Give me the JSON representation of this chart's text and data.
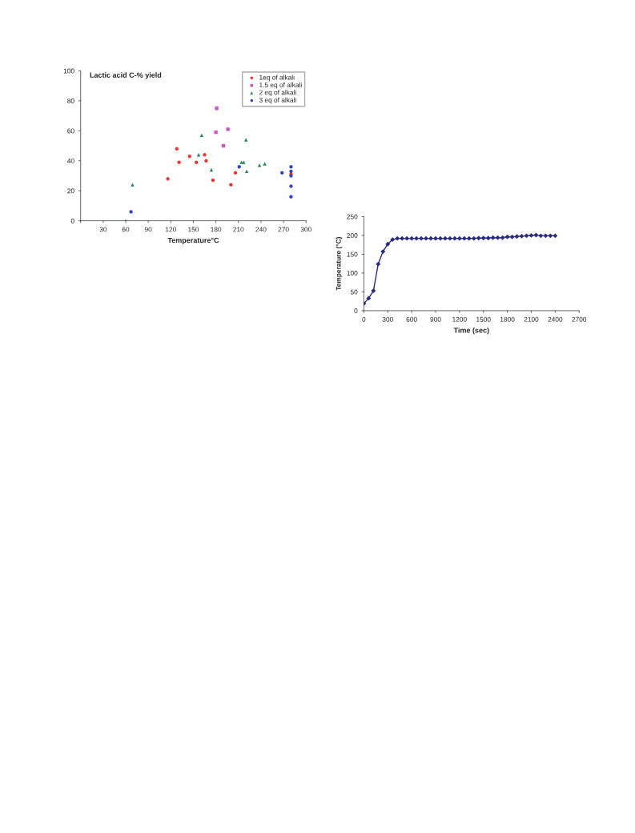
{
  "chart_data": [
    {
      "type": "scatter",
      "title": "Lactic acid C-% yield",
      "xlabel": "Temperature°C",
      "xlim": [
        0,
        300
      ],
      "xticks": [
        {
          "value": 0,
          "label": null
        },
        30,
        60,
        90,
        120,
        150,
        180,
        210,
        240,
        270,
        300
      ],
      "ylim": [
        0,
        100
      ],
      "yticks": [
        0,
        20,
        40,
        60,
        80,
        100
      ],
      "grid": false,
      "legend": "top right",
      "series": [
        {
          "name": "1eq of alkali",
          "color": "#ee3333",
          "marker": "circle",
          "x": [
            116,
            128,
            131,
            145,
            154,
            165,
            167,
            176,
            200,
            206,
            280
          ],
          "values": [
            28,
            48,
            39,
            43,
            39,
            44,
            40,
            27,
            24,
            32,
            31
          ]
        },
        {
          "name": "1.5 eq of alkali",
          "color": "#cc55cc",
          "marker": "square",
          "x": [
            181,
            180,
            196,
            190
          ],
          "values": [
            75,
            59,
            61,
            50
          ]
        },
        {
          "name": "2 eq of alkali",
          "color": "#228855",
          "marker": "triangle",
          "x": [
            60,
            69,
            157,
            161,
            174,
            214,
            217,
            220,
            221,
            238,
            245
          ],
          "values": [
            0,
            24,
            44,
            57,
            34,
            39,
            39,
            54,
            33,
            37,
            38
          ]
        },
        {
          "name": "3 eq of alkali",
          "color": "#3344bb",
          "marker": "circle",
          "x": [
            67,
            211,
            268,
            280,
            280,
            280,
            280,
            280
          ],
          "values": [
            6,
            36,
            32,
            36,
            33,
            30,
            23,
            16
          ]
        }
      ]
    },
    {
      "type": "line",
      "xlabel": "Time (sec)",
      "ylabel": "Temperature (°C)",
      "xlim": [
        0,
        2700
      ],
      "xticks": [
        0,
        300,
        600,
        900,
        1200,
        1500,
        1800,
        2100,
        2400,
        2700
      ],
      "ylim": [
        0,
        250
      ],
      "yticks": [
        0,
        50,
        100,
        150,
        200,
        250
      ],
      "grid": false,
      "marker": "diamond",
      "line_style": "solid",
      "series": [
        {
          "color": "#2a2a80",
          "x": [
            0,
            60,
            120,
            180,
            240,
            300,
            360,
            420,
            480,
            540,
            600,
            660,
            720,
            780,
            840,
            900,
            960,
            1020,
            1080,
            1140,
            1200,
            1260,
            1320,
            1380,
            1440,
            1500,
            1560,
            1620,
            1680,
            1740,
            1800,
            1860,
            1920,
            1980,
            2040,
            2100,
            2160,
            2220,
            2280,
            2340,
            2400
          ],
          "values": [
            19,
            33,
            53,
            124,
            157,
            177,
            189,
            192,
            192,
            192,
            192,
            192,
            192,
            192,
            192,
            192,
            192,
            192,
            192,
            192,
            192,
            192,
            192,
            192,
            193,
            193,
            193,
            194,
            194,
            194,
            196,
            196,
            197,
            198,
            199,
            200,
            201,
            199,
            199,
            199,
            199
          ]
        }
      ]
    }
  ]
}
